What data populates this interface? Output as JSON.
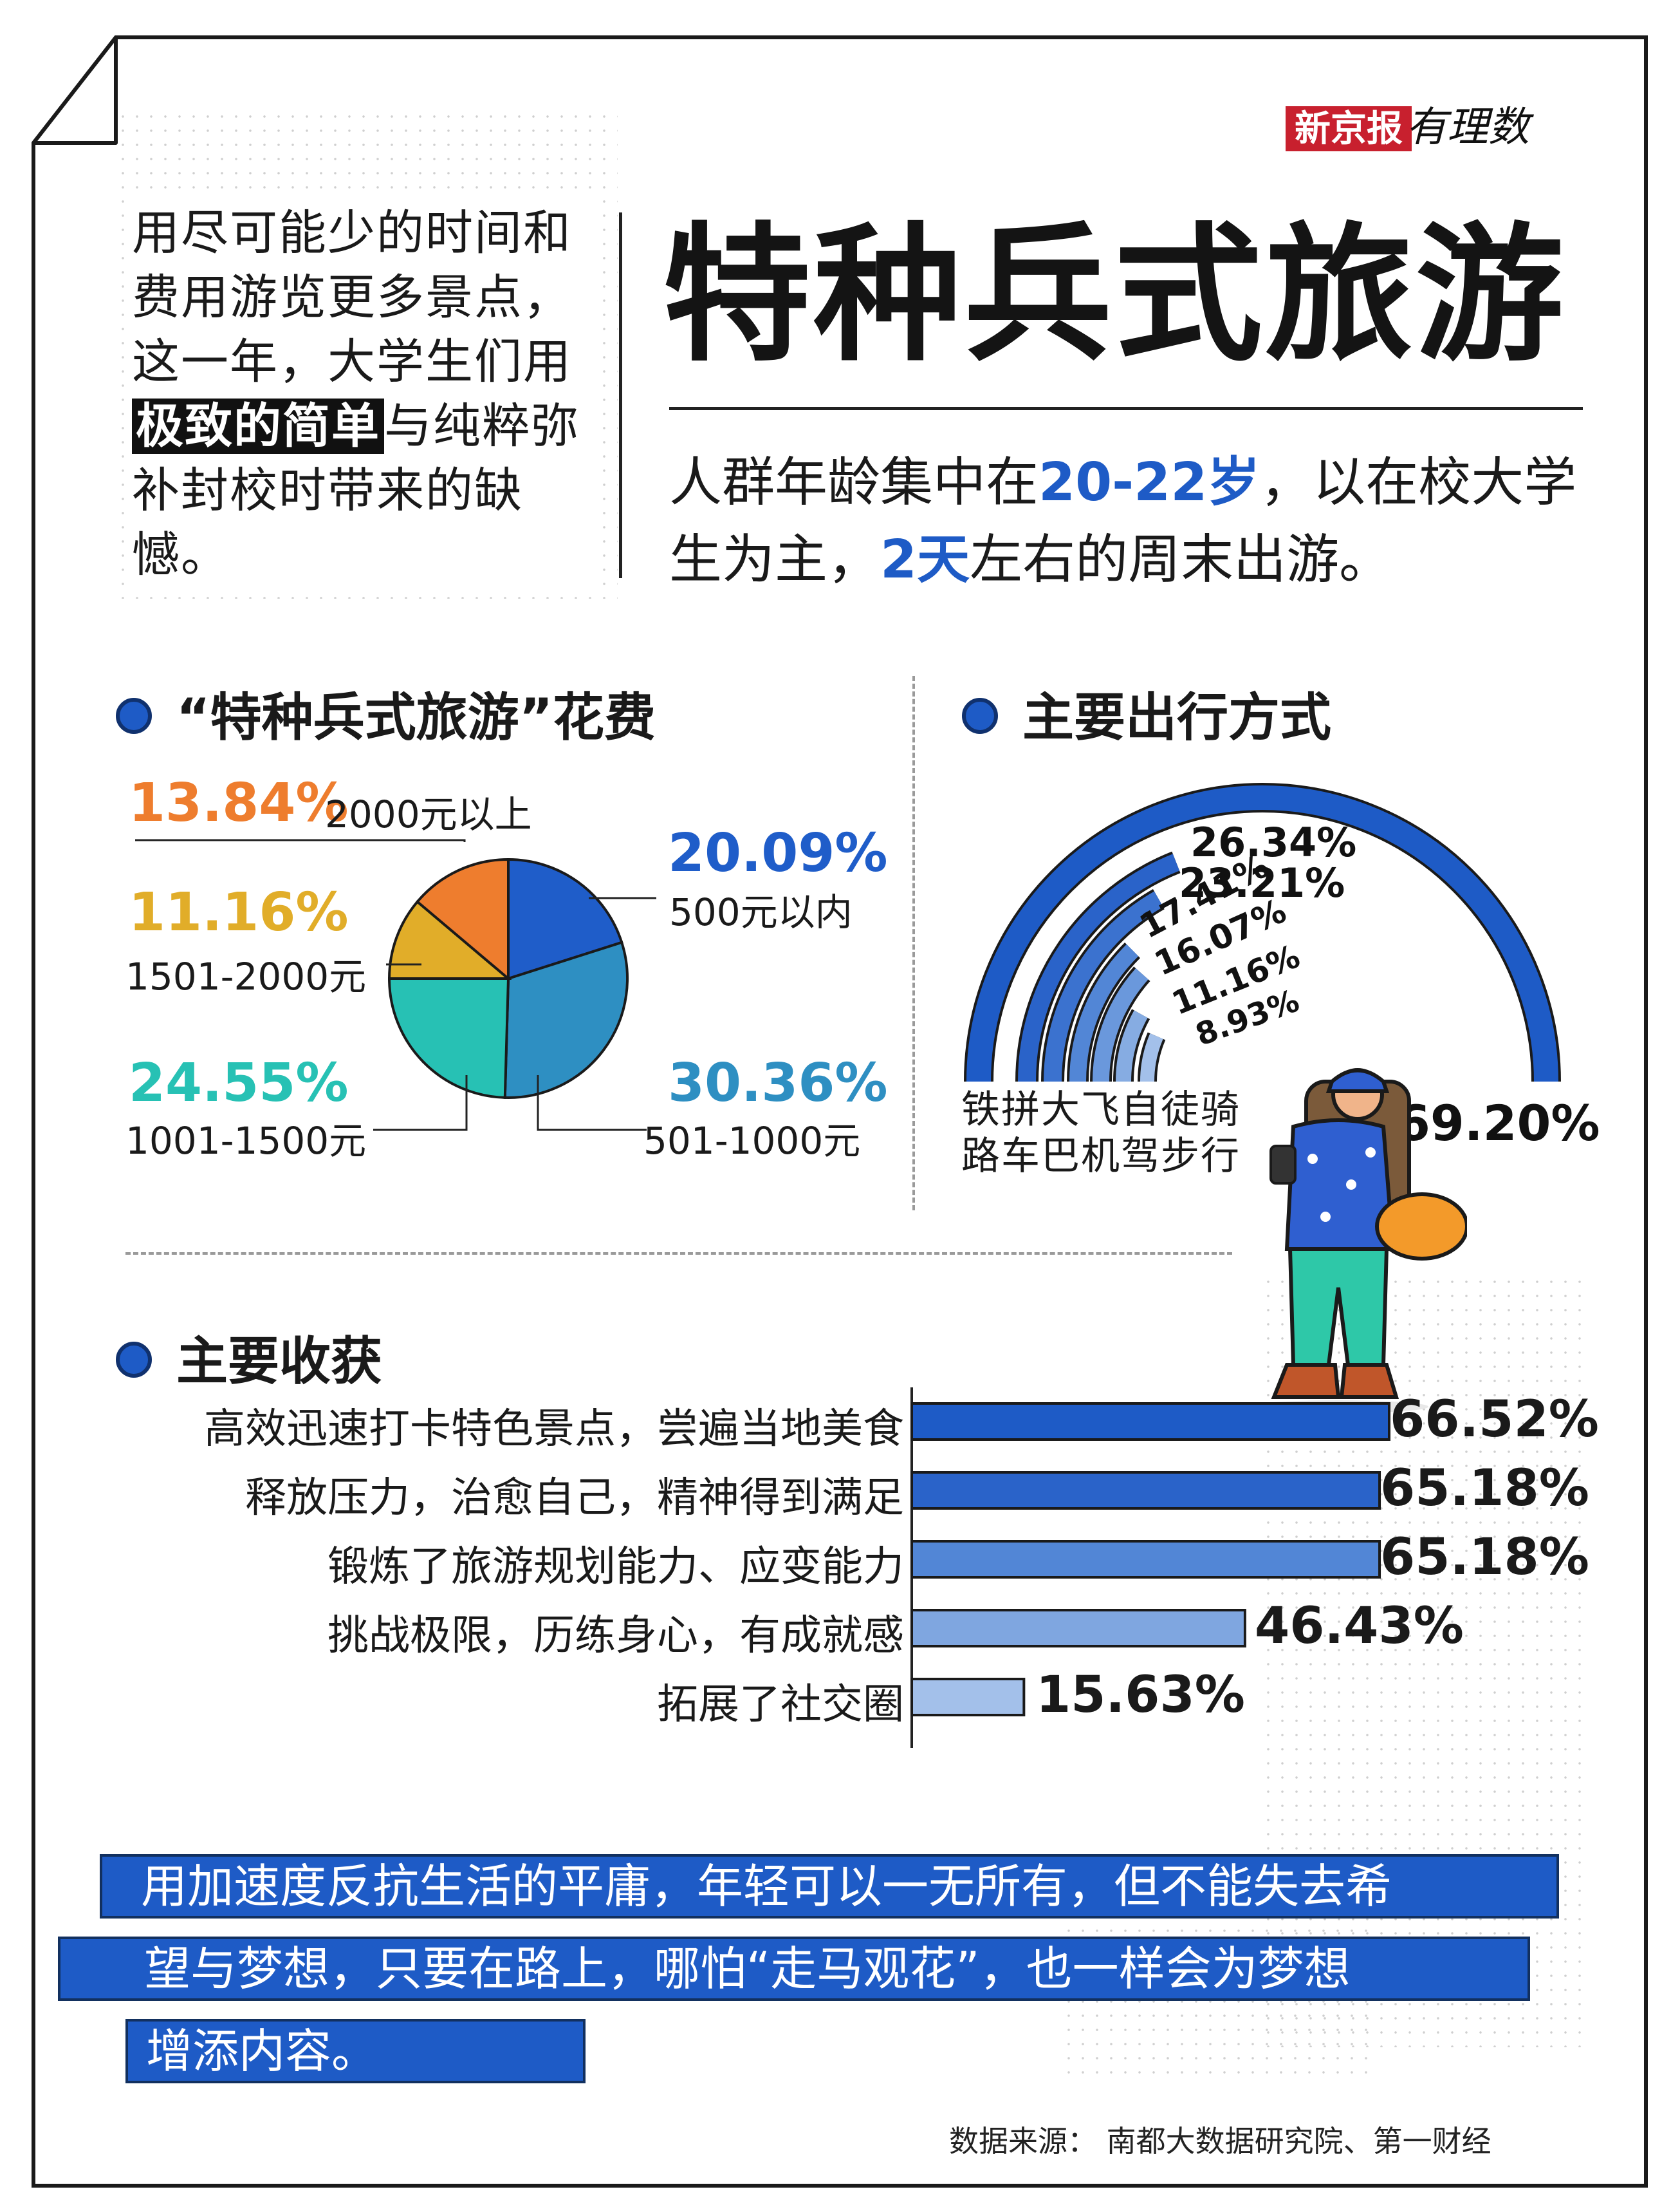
{
  "brand": {
    "name": "新京报",
    "sub": "有理数"
  },
  "intro": {
    "before": "用尽可能少的时间和费用游览更多景点，这一年，大学生们用",
    "highlight": "极致的简单",
    "after": "与纯粹弥补封校时带来的缺憾。"
  },
  "title": "特种兵式旅游",
  "subtitle": {
    "part1": "人群年龄集中在",
    "age": "20-22岁",
    "part2": "，以在校大学生为主，",
    "days": "2天",
    "part3": "左右的周末出游。"
  },
  "sections": {
    "cost": "“特种兵式旅游”花费",
    "transport": "主要出行方式",
    "gains": "主要收获"
  },
  "colors": {
    "accent": "#1e5bc6",
    "pie": [
      "#1f5dc9",
      "#2e8fc2",
      "#27c1b4",
      "#e1ad29",
      "#ee7d2e"
    ],
    "arcs": [
      "#1e5bc6",
      "#2a63c9",
      "#3b72cf",
      "#5286d6",
      "#6a98dc",
      "#86acE2",
      "#a3c0ea"
    ],
    "bars": [
      "#1e5bc6",
      "#2a63c9",
      "#5286d6",
      "#7fa6e0",
      "#a3c0ea"
    ]
  },
  "chart_data": [
    {
      "type": "pie",
      "title": "“特种兵式旅游”花费",
      "slices": [
        {
          "label": "500元以内",
          "value": 20.09,
          "value_text": "20.09%"
        },
        {
          "label": "501-1000元",
          "value": 30.36,
          "value_text": "30.36%"
        },
        {
          "label": "1001-1500元",
          "value": 24.55,
          "value_text": "24.55%"
        },
        {
          "label": "1501-2000元",
          "value": 11.16,
          "value_text": "11.16%"
        },
        {
          "label": "2000元以上",
          "value": 13.84,
          "value_text": "13.84%"
        }
      ]
    },
    {
      "type": "bar",
      "title": "主要出行方式",
      "categories": [
        "铁路",
        "拼车",
        "大巴",
        "飞机",
        "自驾",
        "徒步",
        "骑行"
      ],
      "values": [
        69.2,
        26.34,
        23.21,
        17.41,
        16.07,
        11.16,
        8.93
      ],
      "value_texts": [
        "69.20%",
        "26.34%",
        "23.21%",
        "17.41%",
        "16.07%",
        "11.16%",
        "8.93%"
      ],
      "ylim": [
        0,
        69.2
      ]
    },
    {
      "type": "bar",
      "title": "主要收获",
      "categories": [
        "高效迅速打卡特色景点，尝遍当地美食",
        "释放压力，治愈自己，精神得到满足",
        "锻炼了旅游规划能力、应变能力",
        "挑战极限，历练身心，有成就感",
        "拓展了社交圈"
      ],
      "values": [
        66.52,
        65.18,
        65.18,
        46.43,
        15.63
      ],
      "value_texts": [
        "66.52%",
        "65.18%",
        "65.18%",
        "46.43%",
        "15.63%"
      ]
    }
  ],
  "quote": [
    "用加速度反抗生活的平庸，年轻可以一无所有，但不能失去希",
    "望与梦想，只要在路上，哪怕“走马观花”，也一样会为梦想",
    "增添内容。"
  ],
  "source": "数据来源：  南都大数据研究院、第一财经"
}
